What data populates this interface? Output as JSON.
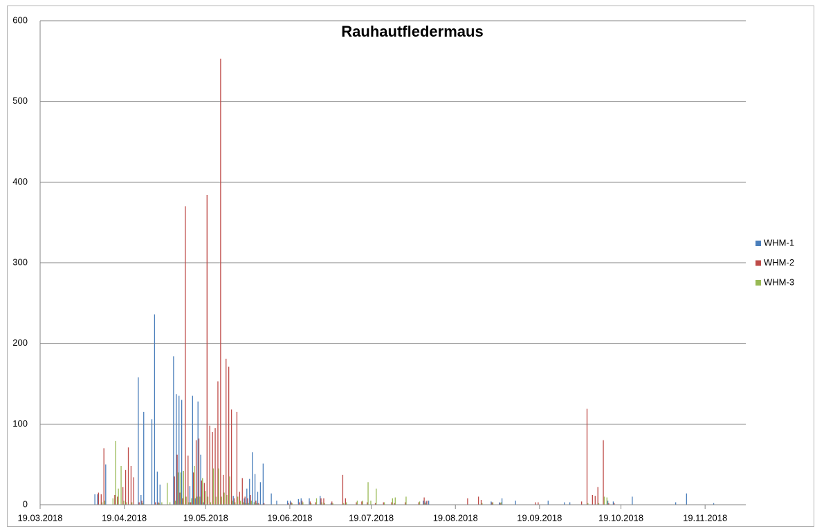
{
  "chart_data": {
    "type": "bar",
    "title": "Rauhautfledermaus",
    "x": [
      "08.04.2018",
      "09.04.2018",
      "10.04.2018",
      "11.04.2018",
      "12.04.2018",
      "14.04.2018",
      "15.04.2018",
      "16.04.2018",
      "17.04.2018",
      "18.04.2018",
      "19.04.2018",
      "20.04.2018",
      "21.04.2018",
      "22.04.2018",
      "24.04.2018",
      "25.04.2018",
      "26.04.2018",
      "29.04.2018",
      "30.04.2018",
      "01.05.2018",
      "02.05.2018",
      "04.05.2018",
      "05.05.2018",
      "07.05.2018",
      "08.05.2018",
      "09.05.2018",
      "10.05.2018",
      "11.05.2018",
      "12.05.2018",
      "13.05.2018",
      "14.05.2018",
      "15.05.2018",
      "16.05.2018",
      "17.05.2018",
      "18.05.2018",
      "19.05.2018",
      "20.05.2018",
      "21.05.2018",
      "22.05.2018",
      "23.05.2018",
      "24.05.2018",
      "25.05.2018",
      "26.05.2018",
      "27.05.2018",
      "28.05.2018",
      "29.05.2018",
      "30.05.2018",
      "31.05.2018",
      "01.06.2018",
      "02.06.2018",
      "03.06.2018",
      "04.06.2018",
      "05.06.2018",
      "06.06.2018",
      "07.06.2018",
      "08.06.2018",
      "09.06.2018",
      "12.06.2018",
      "14.06.2018",
      "18.06.2018",
      "19.06.2018",
      "22.06.2018",
      "23.06.2018",
      "26.06.2018",
      "28.06.2018",
      "30.06.2018",
      "01.07.2018",
      "04.07.2018",
      "08.07.2018",
      "09.07.2018",
      "13.07.2018",
      "15.07.2018",
      "17.07.2018",
      "18.07.2018",
      "20.07.2018",
      "23.07.2018",
      "26.07.2018",
      "27.07.2018",
      "31.07.2018",
      "05.08.2018",
      "07.08.2018",
      "08.08.2018",
      "09.08.2018",
      "23.08.2018",
      "27.08.2018",
      "28.08.2018",
      "01.09.2018",
      "04.09.2018",
      "05.09.2018",
      "10.09.2018",
      "17.09.2018",
      "18.09.2018",
      "22.09.2018",
      "28.09.2018",
      "30.09.2018",
      "04.10.2018",
      "06.10.2018",
      "08.10.2018",
      "09.10.2018",
      "10.10.2018",
      "12.10.2018",
      "13.10.2018",
      "14.10.2018",
      "16.10.2018",
      "23.10.2018",
      "08.11.2018",
      "12.11.2018",
      "22.11.2018"
    ],
    "series": [
      {
        "name": "WHM-1",
        "color": "#4a7ebb",
        "values": [
          13,
          13,
          0,
          0,
          50,
          0,
          0,
          0,
          0,
          0,
          0,
          0,
          0,
          0,
          158,
          12,
          115,
          106,
          236,
          41,
          25,
          0,
          0,
          184,
          137,
          135,
          130,
          0,
          0,
          23,
          135,
          8,
          128,
          62,
          3,
          0,
          0,
          0,
          0,
          0,
          0,
          0,
          0,
          0,
          0,
          11,
          0,
          0,
          0,
          8,
          20,
          32,
          65,
          38,
          16,
          28,
          51,
          14,
          5,
          5,
          5,
          7,
          8,
          8,
          0,
          11,
          0,
          2,
          0,
          0,
          0,
          0,
          0,
          0,
          0,
          0,
          0,
          0,
          0,
          0,
          5,
          4,
          5,
          0,
          0,
          0,
          4,
          3,
          8,
          5,
          0,
          0,
          5,
          3,
          3,
          0,
          0,
          0,
          0,
          0,
          0,
          0,
          5,
          4,
          10,
          3,
          14,
          2
        ]
      },
      {
        "name": "WHM-2",
        "color": "#be4b48",
        "values": [
          0,
          15,
          13,
          70,
          0,
          0,
          12,
          10,
          0,
          22,
          43,
          71,
          48,
          34,
          3,
          5,
          0,
          0,
          3,
          3,
          0,
          0,
          0,
          35,
          62,
          15,
          8,
          370,
          61,
          3,
          40,
          80,
          82,
          30,
          27,
          384,
          98,
          90,
          95,
          153,
          553,
          37,
          181,
          171,
          118,
          8,
          115,
          16,
          33,
          10,
          8,
          12,
          0,
          5,
          2,
          0,
          2,
          0,
          0,
          2,
          3,
          3,
          5,
          4,
          3,
          8,
          8,
          4,
          37,
          8,
          3,
          4,
          3,
          0,
          2,
          3,
          3,
          2,
          3,
          3,
          9,
          5,
          0,
          8,
          10,
          6,
          3,
          2,
          0,
          0,
          3,
          3,
          0,
          0,
          0,
          4,
          119,
          12,
          11,
          22,
          80,
          0,
          2,
          2,
          0,
          0,
          0,
          0
        ]
      },
      {
        "name": "WHM-3",
        "color": "#98b954",
        "values": [
          0,
          0,
          3,
          5,
          0,
          8,
          79,
          20,
          48,
          5,
          3,
          0,
          3,
          0,
          0,
          2,
          0,
          0,
          0,
          2,
          3,
          27,
          3,
          5,
          40,
          40,
          42,
          10,
          3,
          8,
          48,
          10,
          10,
          33,
          17,
          10,
          3,
          45,
          10,
          45,
          10,
          15,
          12,
          35,
          5,
          3,
          10,
          5,
          3,
          2,
          2,
          5,
          3,
          2,
          0,
          0,
          0,
          0,
          0,
          0,
          2,
          0,
          3,
          2,
          8,
          3,
          2,
          2,
          2,
          3,
          5,
          5,
          28,
          5,
          20,
          3,
          8,
          9,
          10,
          4,
          2,
          0,
          0,
          0,
          0,
          2,
          3,
          3,
          0,
          0,
          0,
          0,
          0,
          0,
          0,
          0,
          2,
          0,
          0,
          2,
          10,
          9,
          0,
          0,
          0,
          0,
          0,
          0
        ]
      }
    ],
    "xlim": [
      "19.03.2018",
      "04.12.2018"
    ],
    "xticks": [
      "19.03.2018",
      "19.04.2018",
      "19.05.2018",
      "19.06.2018",
      "19.07.2018",
      "19.08.2018",
      "19.09.2018",
      "19.10.2018",
      "19.11.2018"
    ],
    "ylim": [
      0,
      600
    ],
    "yticks": [
      0,
      100,
      200,
      300,
      400,
      500,
      600
    ],
    "grid": true,
    "legend": "right"
  }
}
